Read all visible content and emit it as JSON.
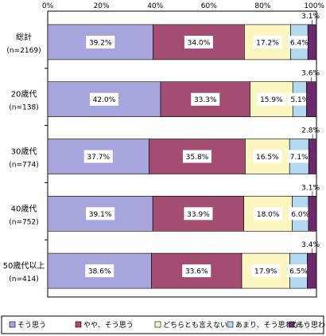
{
  "chart_data": {
    "type": "bar",
    "orientation": "horizontal",
    "stacked": true,
    "xlim": [
      0,
      100
    ],
    "x_ticks": [
      "0%",
      "20%",
      "40%",
      "60%",
      "80%",
      "100%"
    ],
    "categories": [
      {
        "name": "総計",
        "n": "(n=2169)"
      },
      {
        "name": "20歳代",
        "n": "(n=138)"
      },
      {
        "name": "30歳代",
        "n": "(n=774)"
      },
      {
        "name": "40歳代",
        "n": "(n=752)"
      },
      {
        "name": "50歳代以上",
        "n": "(n=414)"
      }
    ],
    "series": [
      {
        "name": "そう思う",
        "color": "#a6a6dc",
        "values": [
          39.2,
          42.0,
          37.7,
          39.1,
          38.6
        ],
        "labels": [
          "39.2%",
          "42.0%",
          "37.7%",
          "39.1%",
          "38.6%"
        ]
      },
      {
        "name": "やや、そう思う",
        "color": "#a34d72",
        "values": [
          34.0,
          33.3,
          35.8,
          33.9,
          33.6
        ],
        "labels": [
          "34.0%",
          "33.3%",
          "35.8%",
          "33.9%",
          "33.6%"
        ]
      },
      {
        "name": "どちらとも言えない",
        "color": "#fbf6bf",
        "values": [
          17.2,
          15.9,
          16.5,
          18.0,
          17.9
        ],
        "labels": [
          "17.2%",
          "15.9%",
          "16.5%",
          "18.0%",
          "17.9%"
        ]
      },
      {
        "name": "あまり、そう思わない",
        "color": "#b4d8f0",
        "values": [
          6.4,
          5.1,
          7.1,
          6.0,
          6.5
        ],
        "labels": [
          "6.4%",
          "5.1%",
          "7.1%",
          "6.0%",
          "6.5%"
        ]
      },
      {
        "name": "そう思わない",
        "color": "#6b2a6b",
        "values": [
          3.1,
          3.6,
          2.8,
          3.1,
          3.4
        ],
        "labels": [
          "3.1%",
          "3.6%",
          "2.8%",
          "3.1%",
          "3.4%"
        ]
      }
    ],
    "legend": "bottom",
    "grid": false
  }
}
